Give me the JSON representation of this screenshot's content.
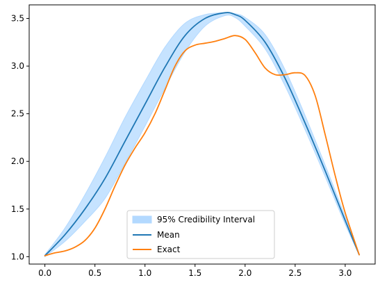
{
  "chart_data": {
    "type": "line",
    "title": "",
    "xlabel": "",
    "ylabel": "",
    "xlim": [
      -0.157,
      3.299
    ],
    "ylim": [
      0.9225,
      3.6424
    ],
    "x_ticks": [
      0.0,
      0.5,
      1.0,
      1.5,
      2.0,
      2.5,
      3.0
    ],
    "x_tick_labels": [
      "0.0",
      "0.5",
      "1.0",
      "1.5",
      "2.0",
      "2.5",
      "3.0"
    ],
    "y_ticks": [
      1.0,
      1.5,
      2.0,
      2.5,
      3.0,
      3.5
    ],
    "y_tick_labels": [
      "1.0",
      "1.5",
      "2.0",
      "2.5",
      "3.0",
      "3.5"
    ],
    "grid": false,
    "legend_position": "lower-center",
    "colors": {
      "interval": "#b3d9ff",
      "mean": "#1f77b4",
      "exact": "#ff7f0e"
    },
    "series": [
      {
        "name": "Mean",
        "kind": "line",
        "x": [
          0.0,
          0.2,
          0.4,
          0.6,
          0.8,
          1.0,
          1.2,
          1.4,
          1.6,
          1.8,
          1.9,
          2.0,
          2.2,
          2.4,
          2.6,
          2.8,
          3.0,
          3.14
        ],
        "y": [
          1.01,
          1.23,
          1.5,
          1.82,
          2.21,
          2.6,
          2.99,
          3.32,
          3.5,
          3.56,
          3.54,
          3.48,
          3.25,
          2.87,
          2.4,
          1.9,
          1.38,
          1.02
        ]
      },
      {
        "name": "Exact",
        "kind": "line",
        "x": [
          0.0,
          0.1,
          0.2,
          0.3,
          0.4,
          0.5,
          0.6,
          0.7,
          0.8,
          0.9,
          1.0,
          1.1,
          1.2,
          1.3,
          1.4,
          1.5,
          1.6,
          1.7,
          1.8,
          1.9,
          2.0,
          2.1,
          2.2,
          2.3,
          2.4,
          2.5,
          2.6,
          2.7,
          2.8,
          2.9,
          3.0,
          3.14
        ],
        "y": [
          1.01,
          1.04,
          1.06,
          1.1,
          1.17,
          1.3,
          1.5,
          1.74,
          1.96,
          2.14,
          2.3,
          2.5,
          2.75,
          3.0,
          3.16,
          3.22,
          3.24,
          3.26,
          3.29,
          3.32,
          3.28,
          3.14,
          2.98,
          2.91,
          2.91,
          2.93,
          2.9,
          2.69,
          2.28,
          1.85,
          1.46,
          1.02
        ]
      },
      {
        "name": "95% Credibility Interval",
        "kind": "band",
        "x": [
          0.0,
          0.2,
          0.4,
          0.6,
          0.8,
          1.0,
          1.2,
          1.4,
          1.6,
          1.8,
          1.9,
          2.0,
          2.2,
          2.4,
          2.6,
          2.8,
          3.0,
          3.14
        ],
        "upper": [
          1.02,
          1.3,
          1.65,
          2.04,
          2.46,
          2.84,
          3.2,
          3.45,
          3.54,
          3.56,
          3.55,
          3.51,
          3.33,
          2.96,
          2.48,
          1.96,
          1.42,
          1.02
        ],
        "lower": [
          1.0,
          1.16,
          1.37,
          1.61,
          1.98,
          2.37,
          2.77,
          3.15,
          3.42,
          3.53,
          3.51,
          3.42,
          3.18,
          2.79,
          2.33,
          1.84,
          1.34,
          1.02
        ]
      }
    ]
  }
}
